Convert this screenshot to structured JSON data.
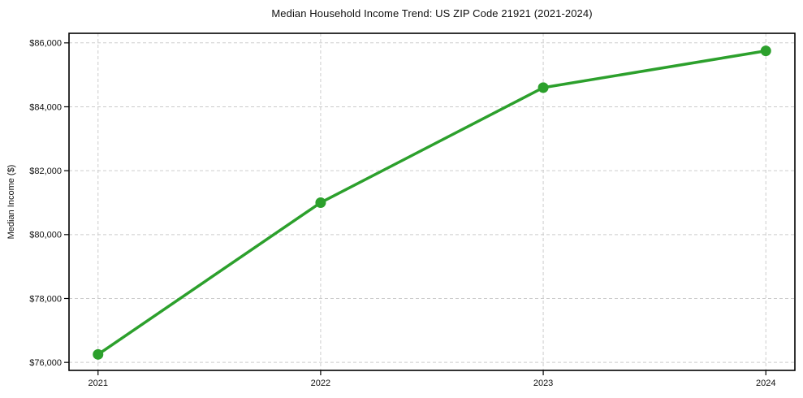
{
  "chart_data": {
    "type": "line",
    "title": "Median Household Income Trend: US ZIP Code 21921 (2021-2024)",
    "xlabel": "",
    "ylabel": "Median Income ($)",
    "categories": [
      "2021",
      "2022",
      "2023",
      "2024"
    ],
    "values": [
      76250,
      81000,
      84600,
      85750
    ],
    "ylim": [
      75750,
      86300
    ],
    "yticks": [
      76000,
      78000,
      80000,
      82000,
      84000,
      86000
    ],
    "ytick_labels": [
      "$76,000",
      "$78,000",
      "$80,000",
      "$82,000",
      "$84,000",
      "$86,000"
    ],
    "grid": true,
    "grid_style": "dashed",
    "legend_position": "none",
    "marker": "circle",
    "colors": {
      "line": "#2ca02c",
      "marker": "#2ca02c",
      "grid": "#cccccc",
      "axis": "#000000",
      "text": "#101010",
      "background": "#ffffff"
    }
  }
}
